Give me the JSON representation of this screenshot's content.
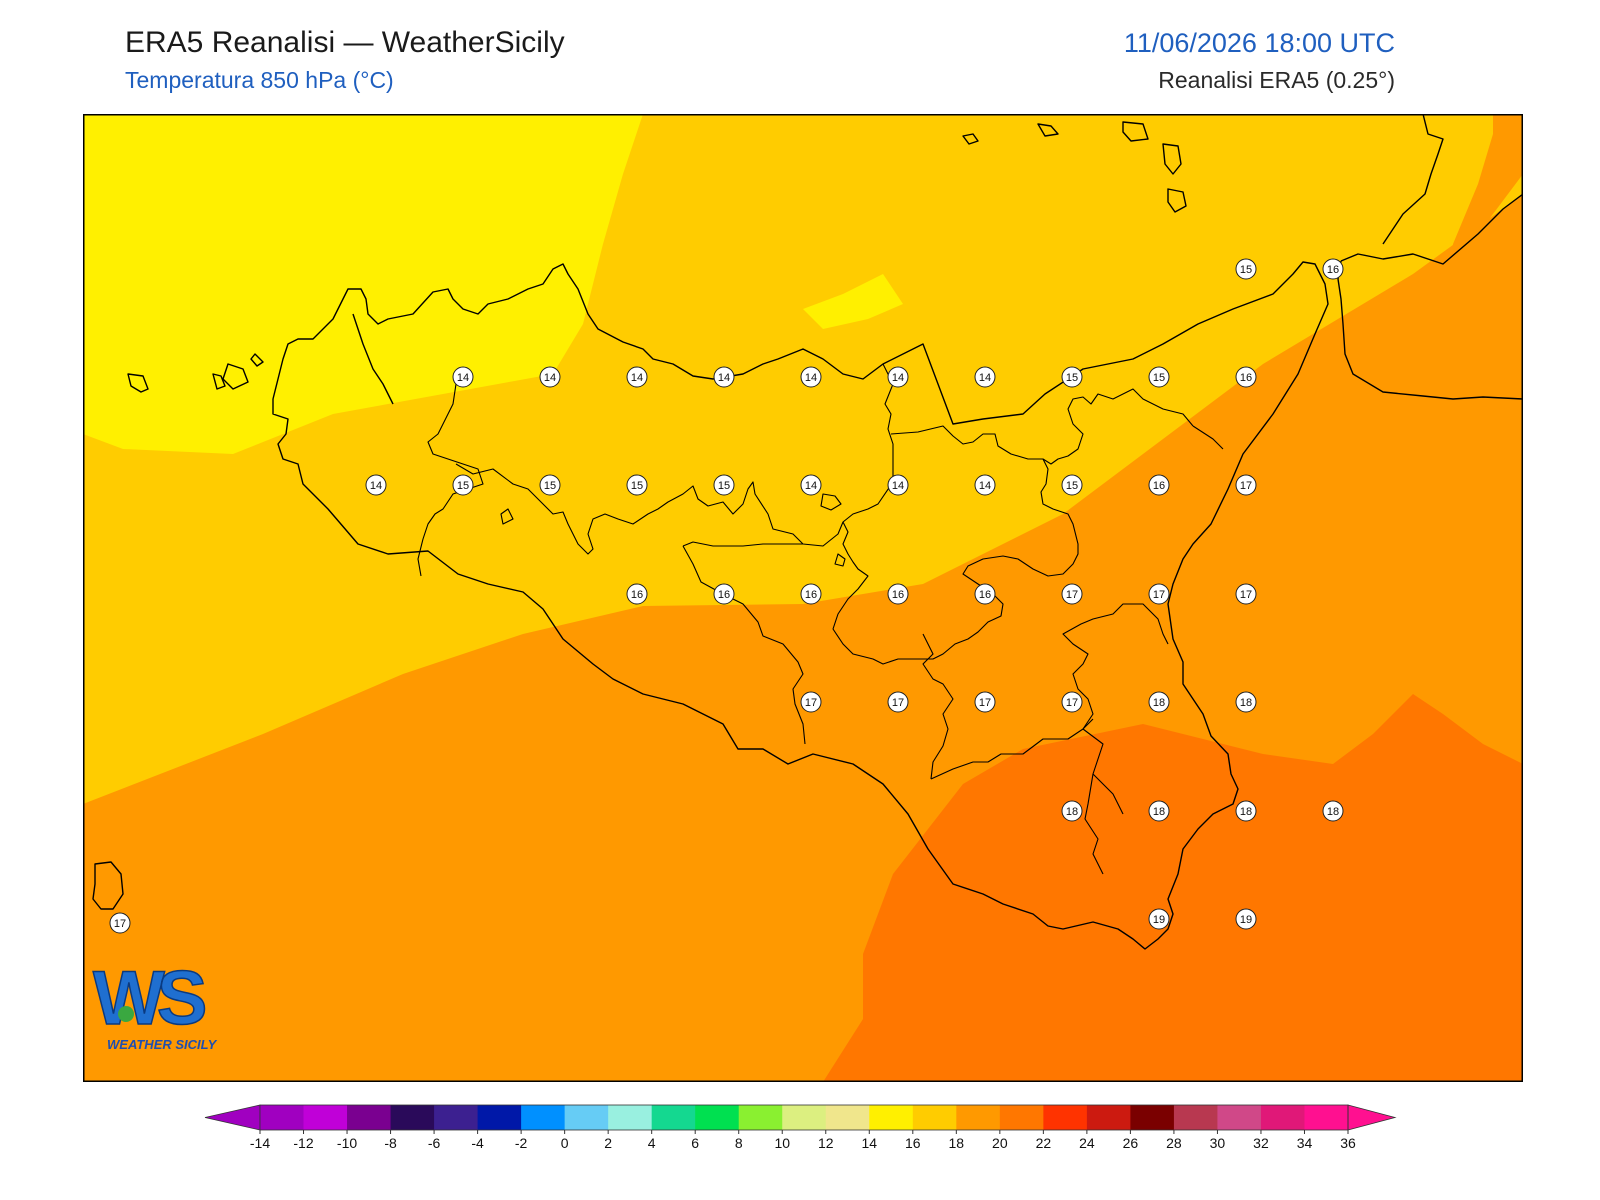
{
  "header": {
    "title": "ERA5 Reanalisi — WeatherSicily",
    "subtitle": "Temperatura 850 hPa (°C)",
    "datetime": "11/06/2026 18:00 UTC",
    "source": "Reanalisi ERA5 (0.25°)"
  },
  "logo": {
    "letters": "WS",
    "text": "WEATHER SICILY"
  },
  "map": {
    "variable": "temperature_850hPa",
    "unit": "°C",
    "point_values": [
      [
        14,
        14,
        14,
        14,
        14,
        14,
        14,
        15,
        15,
        16
      ],
      [
        14,
        15,
        15,
        15,
        15,
        14,
        14,
        14,
        15,
        16,
        17
      ],
      [
        16,
        16,
        16,
        16,
        16,
        17,
        17,
        17
      ],
      [
        17,
        17,
        17,
        17,
        18,
        18
      ],
      [
        18,
        18,
        18,
        18
      ],
      [
        19,
        19
      ]
    ],
    "north_points": [
      15,
      16
    ],
    "pantelleria_value": 17
  },
  "colorbar": {
    "ticks": [
      -14,
      -12,
      -10,
      -8,
      -6,
      -4,
      -2,
      0,
      2,
      4,
      6,
      8,
      10,
      12,
      14,
      16,
      18,
      20,
      22,
      24,
      26,
      28,
      30,
      32,
      34,
      36
    ],
    "colors": [
      "#a000c0",
      "#c000d8",
      "#7a0090",
      "#2a0a5a",
      "#3c2090",
      "#0018a8",
      "#0090ff",
      "#66ccf5",
      "#99f0e0",
      "#14d890",
      "#00e050",
      "#8af030",
      "#dcef80",
      "#f0e68c",
      "#fff000",
      "#ffcc00",
      "#ff9900",
      "#ff7700",
      "#ff3300",
      "#cc1a10",
      "#7a0000",
      "#b83850",
      "#d04888",
      "#e01878",
      "#ff1090"
    ]
  }
}
